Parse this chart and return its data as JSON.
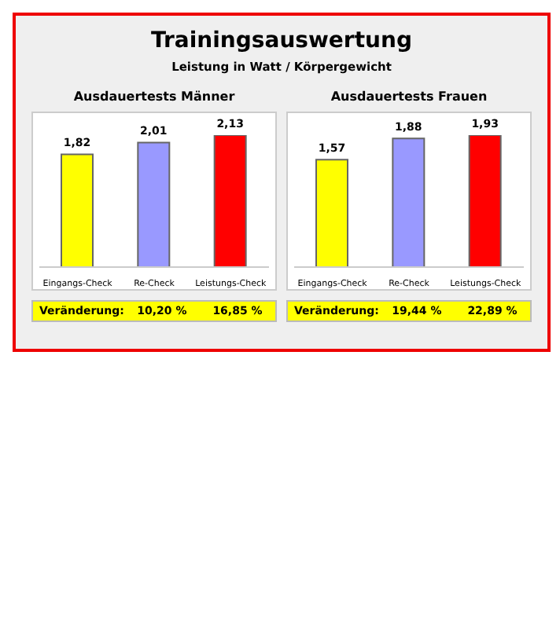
{
  "chart_data": [
    {
      "type": "bar",
      "title": "Ausdauertests Männer",
      "categories": [
        "Eingangs-Check",
        "Re-Check",
        "Leistungs-Check"
      ],
      "values": [
        1.82,
        2.01,
        2.13
      ],
      "value_labels": [
        "1,82",
        "2,01",
        "2,13"
      ],
      "colors": [
        "#ffff00",
        "#9999ff",
        "#ff0000"
      ],
      "annotations": [
        "Trainingsauswertung",
        "Leistung in Watt / Körpergewicht",
        "Veränderung:",
        "10,20 %",
        "16,85 %"
      ]
    },
    {
      "type": "bar",
      "title": "Ausdauertests Frauen",
      "categories": [
        "Eingangs-Check",
        "Re-Check",
        "Leistungs-Check"
      ],
      "values": [
        1.57,
        1.88,
        1.93
      ],
      "value_labels": [
        "1,57",
        "1,88",
        "1,93"
      ],
      "colors": [
        "#ffff00",
        "#9999ff",
        "#ff0000"
      ],
      "annotations": [
        "Veränderung:",
        "19,44 %",
        "22,89 %"
      ]
    }
  ]
}
